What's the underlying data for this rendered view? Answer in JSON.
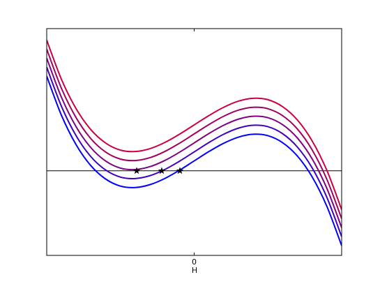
{
  "chart_data": {
    "type": "line",
    "xlabel": "H",
    "xlim": [
      -1,
      1
    ],
    "ylim": [
      -0.47,
      0.79
    ],
    "xticks": [
      0
    ],
    "hline": 0,
    "x": [
      -1,
      -0.9,
      -0.8,
      -0.7,
      -0.6,
      -0.5,
      -0.4,
      -0.3,
      -0.2,
      -0.1,
      0,
      0.1,
      0.2,
      0.3,
      0.4,
      0.5,
      0.6,
      0.7,
      0.8,
      0.9,
      1
    ],
    "series": [
      {
        "color": "#0000ff",
        "values": [
          0.526,
          0.308,
          0.144,
          0.028,
          -0.046,
          -0.085,
          -0.093,
          -0.077,
          -0.043,
          0.003,
          0.055,
          0.107,
          0.153,
          0.187,
          0.203,
          0.195,
          0.156,
          0.082,
          -0.034,
          -0.198,
          -0.416
        ]
      },
      {
        "color": "#4000c0",
        "values": [
          0.576,
          0.358,
          0.194,
          0.078,
          0.004,
          -0.035,
          -0.043,
          -0.027,
          0.007,
          0.053,
          0.105,
          0.157,
          0.203,
          0.237,
          0.253,
          0.245,
          0.206,
          0.132,
          0.016,
          -0.148,
          -0.366
        ]
      },
      {
        "color": "#800080",
        "values": [
          0.626,
          0.408,
          0.244,
          0.128,
          0.054,
          0.015,
          0.007,
          0.023,
          0.057,
          0.103,
          0.155,
          0.207,
          0.253,
          0.287,
          0.303,
          0.295,
          0.256,
          0.182,
          0.066,
          -0.098,
          -0.316
        ]
      },
      {
        "color": "#a00060",
        "values": [
          0.676,
          0.458,
          0.294,
          0.178,
          0.104,
          0.065,
          0.057,
          0.073,
          0.107,
          0.153,
          0.205,
          0.257,
          0.303,
          0.337,
          0.353,
          0.345,
          0.306,
          0.232,
          0.116,
          -0.048,
          -0.266
        ]
      },
      {
        "color": "#cc0040",
        "values": [
          0.726,
          0.508,
          0.344,
          0.228,
          0.154,
          0.115,
          0.107,
          0.123,
          0.157,
          0.203,
          0.255,
          0.307,
          0.353,
          0.387,
          0.403,
          0.395,
          0.356,
          0.282,
          0.166,
          0.002,
          -0.216
        ]
      }
    ],
    "markers": {
      "color": "#000000",
      "x": [
        -0.39,
        -0.22,
        -0.097
      ],
      "values": [
        0,
        0,
        0
      ]
    }
  }
}
